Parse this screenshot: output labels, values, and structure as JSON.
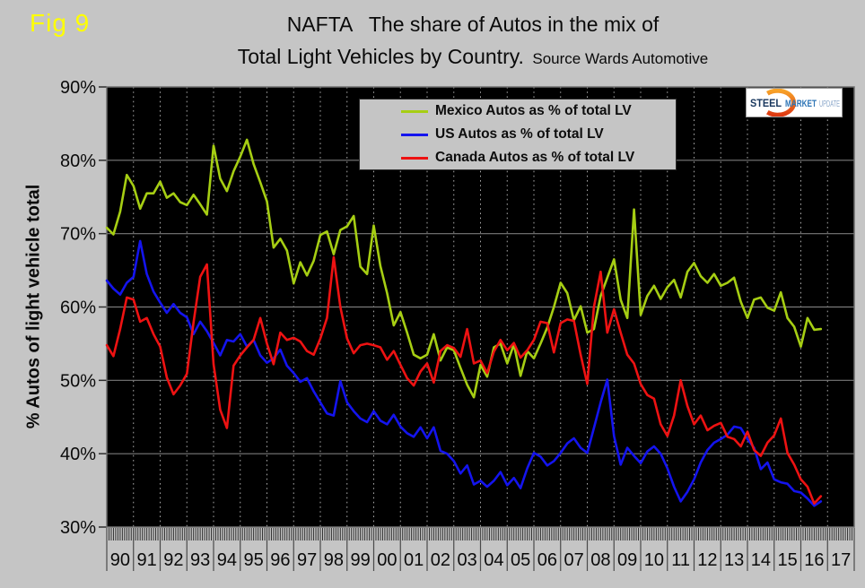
{
  "figure_label": "Fig 9",
  "title": {
    "line1": "NAFTA   The share of Autos in the mix of",
    "line2": "Total Light Vehicles by Country.",
    "source": "  Source Wards Automotive"
  },
  "y_axis_title": "% Autos of light vehicle total",
  "logo": {
    "steel": "STEEL",
    "market": "MARKET",
    "update": "UPDATE"
  },
  "chart_data": {
    "type": "line",
    "title": "NAFTA The share of Autos in the mix of Total Light Vehicles by Country",
    "source": "Source Wards Automotive",
    "x_start_year": 1990,
    "x_step_years": 0.25,
    "x_tick_labels": [
      "90",
      "91",
      "92",
      "93",
      "94",
      "95",
      "96",
      "97",
      "98",
      "99",
      "00",
      "01",
      "02",
      "03",
      "04",
      "05",
      "06",
      "07",
      "08",
      "09",
      "10",
      "11",
      "12",
      "13",
      "14",
      "15",
      "16",
      "17"
    ],
    "y_ticks": [
      90,
      80,
      70,
      60,
      50,
      40,
      30
    ],
    "y_tick_suffix": "%",
    "ylim": [
      30,
      90
    ],
    "grid": true,
    "legend_position": "top-center",
    "plot_bg": "#000000",
    "h_gridline_color": "#7a7a7a",
    "v_gridline_color": "#a8a8a8",
    "frame_color": "#6e6e6e",
    "tick_color": "#2e2e2e",
    "series": [
      {
        "name": "Mexico Autos as % of total LV",
        "color": "#A6CE13",
        "values": [
          70.8,
          69.9,
          73,
          78,
          76.5,
          73.4,
          75.5,
          75.5,
          77.1,
          74.9,
          75.5,
          74.3,
          73.9,
          75.3,
          74,
          72.6,
          82,
          77.5,
          75.8,
          78.5,
          80.5,
          82.8,
          79.5,
          77,
          74.4,
          68.1,
          69.3,
          67.7,
          63.2,
          66.1,
          64.3,
          66.3,
          69.8,
          70.3,
          67.2,
          70.5,
          71,
          72.4,
          65.5,
          64.5,
          71.1,
          65.6,
          61.9,
          57.5,
          59.3,
          56.5,
          53.5,
          53,
          53.5,
          56.3,
          52.7,
          54.5,
          54.1,
          51.7,
          49.4,
          47.7,
          52.1,
          50.5,
          54.5,
          55,
          52.3,
          54.9,
          50.6,
          54,
          53,
          55,
          57.2,
          60,
          63.3,
          61.9,
          58.2,
          60.1,
          56.5,
          57,
          61.5,
          64,
          66.5,
          61,
          58.5,
          73.3,
          58.9,
          61.5,
          62.9,
          61.1,
          62.7,
          63.7,
          61.3,
          64.8,
          66,
          64.2,
          63.3,
          64.5,
          62.9,
          63.3,
          64,
          60.7,
          58.5,
          61,
          61.3,
          59.9,
          59.5,
          62,
          58.5,
          57.3,
          54.6,
          58.5,
          56.9,
          57
        ]
      },
      {
        "name": "US Autos as % of total LV",
        "color": "#1414EE",
        "values": [
          63.6,
          62.5,
          61.7,
          63.3,
          64.1,
          69,
          64.5,
          62.1,
          60.6,
          59.2,
          60.4,
          59.2,
          58.6,
          56.3,
          58,
          56.7,
          55.1,
          53.4,
          55.5,
          55.3,
          56.3,
          54.6,
          55.5,
          53.4,
          52.4,
          53,
          54.2,
          52,
          51,
          49.8,
          50.3,
          48.5,
          47,
          45.5,
          45.2,
          49.9,
          47,
          45.8,
          44.8,
          44.3,
          45.8,
          44.5,
          44,
          45.3,
          43.7,
          42.8,
          42.3,
          43.6,
          42.1,
          43.6,
          40.4,
          40,
          39,
          37.3,
          38.4,
          35.8,
          36.3,
          35.5,
          36.3,
          37.5,
          35.7,
          36.7,
          35.3,
          38,
          40.1,
          39.6,
          38.4,
          39,
          40.1,
          41.4,
          42.1,
          40.8,
          40.1,
          43.5,
          47,
          50.1,
          42.4,
          38.5,
          40.8,
          39.7,
          38.7,
          40.3,
          41,
          40,
          38,
          35.5,
          33.5,
          34.8,
          36.5,
          38.8,
          40.5,
          41.5,
          42,
          42.6,
          43.7,
          43.5,
          42,
          40.8,
          37.9,
          38.8,
          36.5,
          36.1,
          35.9,
          34.9,
          34.7,
          33.9,
          32.9,
          33.5
        ]
      },
      {
        "name": "Canada Autos as % of total LV",
        "color": "#EE1212",
        "values": [
          54.8,
          53.3,
          57,
          61.3,
          61,
          58,
          58.5,
          56.3,
          54.6,
          50.4,
          48.1,
          49.3,
          50.9,
          57.9,
          64.1,
          65.8,
          52.2,
          46,
          43.5,
          52,
          53.4,
          54.5,
          55.5,
          58.5,
          55,
          52.2,
          56.5,
          55.5,
          55.8,
          55.3,
          54,
          53.5,
          55.7,
          58.5,
          66.8,
          60,
          55.7,
          53.7,
          54.8,
          55,
          54.8,
          54.5,
          52.8,
          54,
          52.1,
          50.3,
          49.3,
          51.2,
          52.3,
          49.7,
          54,
          54.8,
          54.4,
          53.2,
          57,
          52.3,
          52.7,
          51,
          53.9,
          55.5,
          54.1,
          55.1,
          53.1,
          54.1,
          55.5,
          58,
          57.8,
          53.8,
          57.8,
          58.3,
          58.1,
          53.5,
          49.5,
          60,
          64.8,
          56.5,
          59.7,
          56.5,
          53.5,
          52.3,
          49.5,
          48,
          47.5,
          44,
          42.4,
          45.2,
          50,
          46.5,
          44,
          45.2,
          43.2,
          43.8,
          44.2,
          42.3,
          42,
          41,
          43,
          40.5,
          39.7,
          41.5,
          42.5,
          44.8,
          40.1,
          38.5,
          36.5,
          35.5,
          33.2,
          34.2
        ]
      }
    ]
  }
}
